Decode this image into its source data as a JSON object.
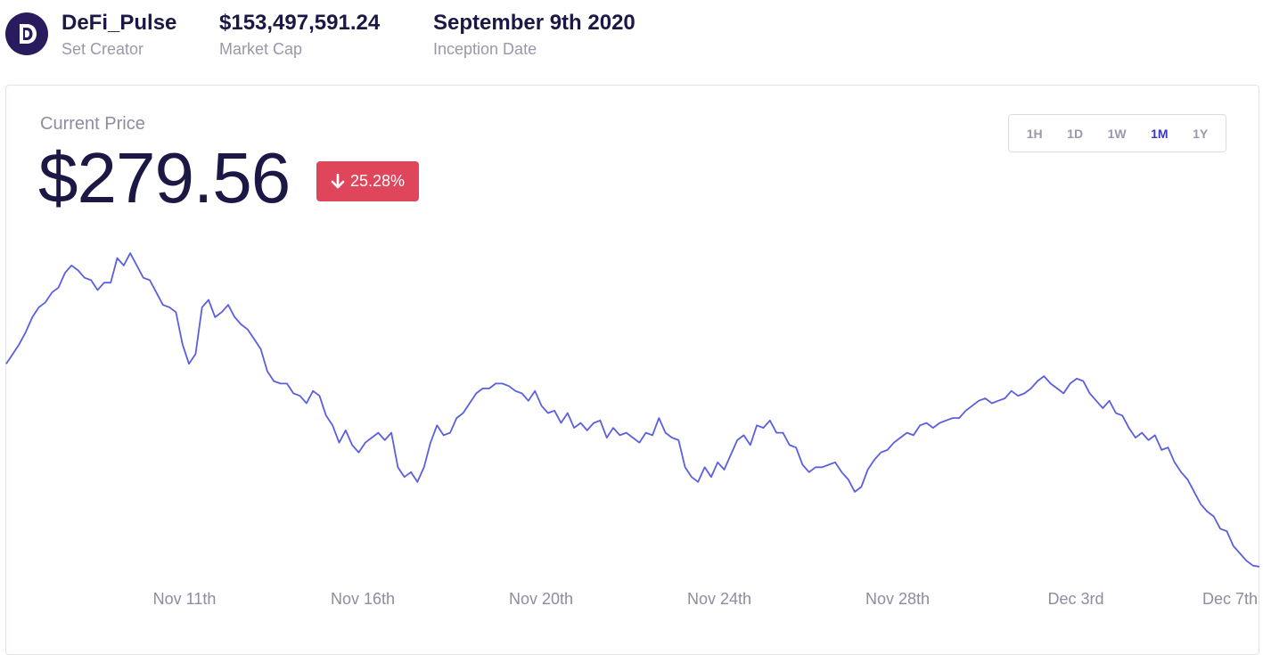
{
  "header": {
    "set_name": "DeFi_Pulse",
    "set_creator_label": "Set Creator",
    "market_cap": "$153,497,591.24",
    "market_cap_label": "Market Cap",
    "inception_date": "September 9th 2020",
    "inception_label": "Inception Date",
    "logo_icon": "defi-pulse-logo-icon"
  },
  "price_panel": {
    "current_label": "Current Price",
    "price": "$279.56",
    "change": "25.28%",
    "change_direction": "down",
    "change_color": "#e0465b"
  },
  "ranges": {
    "options": [
      "1H",
      "1D",
      "1W",
      "1M",
      "1Y"
    ],
    "selected": "1M"
  },
  "chart_data": {
    "type": "line",
    "line_color": "#5b5fe0",
    "x_ticks": [
      "Nov 11th",
      "Nov 16th",
      "Nov 20th",
      "Nov 24th",
      "Nov 28th",
      "Dec 3rd",
      "Dec 7th"
    ],
    "series": [
      {
        "values": [
          362,
          366,
          370,
          375,
          381,
          385,
          387,
          391,
          393,
          399,
          402,
          400,
          397,
          396,
          392,
          395,
          395,
          405,
          402,
          407,
          402,
          397,
          396,
          391,
          386,
          385,
          383,
          370,
          362,
          366,
          385,
          388,
          381,
          383,
          386,
          381,
          378,
          376,
          372,
          368,
          359,
          355,
          354,
          354,
          350,
          349,
          346,
          351,
          349,
          341,
          337,
          330,
          335,
          329,
          326,
          330,
          332,
          334,
          331,
          334,
          320,
          316,
          318,
          314,
          320,
          330,
          337,
          333,
          334,
          340,
          342,
          346,
          350,
          352,
          352,
          354,
          354,
          353,
          351,
          350,
          347,
          351,
          345,
          342,
          343,
          338,
          342,
          336,
          338,
          335,
          338,
          339,
          332,
          336,
          333,
          334,
          332,
          330,
          334,
          333,
          340,
          334,
          332,
          331,
          320,
          316,
          314,
          320,
          316,
          322,
          319,
          325,
          331,
          333,
          329,
          337,
          336,
          339,
          334,
          334,
          329,
          328,
          321,
          318,
          320,
          320,
          321,
          322,
          318,
          315,
          310,
          312,
          319,
          323,
          326,
          327,
          330,
          332,
          334,
          333,
          337,
          338,
          336,
          338,
          339,
          340,
          340,
          343,
          345,
          347,
          348,
          346,
          347,
          348,
          351,
          349,
          350,
          352,
          355,
          357,
          354,
          352,
          350,
          354,
          356,
          355,
          350,
          347,
          344,
          347,
          342,
          341,
          336,
          332,
          334,
          331,
          333,
          327,
          328,
          322,
          318,
          315,
          310,
          305,
          302,
          300,
          295,
          294,
          288,
          285,
          282,
          280,
          279.56
        ]
      }
    ],
    "grid": false,
    "legend": "none"
  }
}
